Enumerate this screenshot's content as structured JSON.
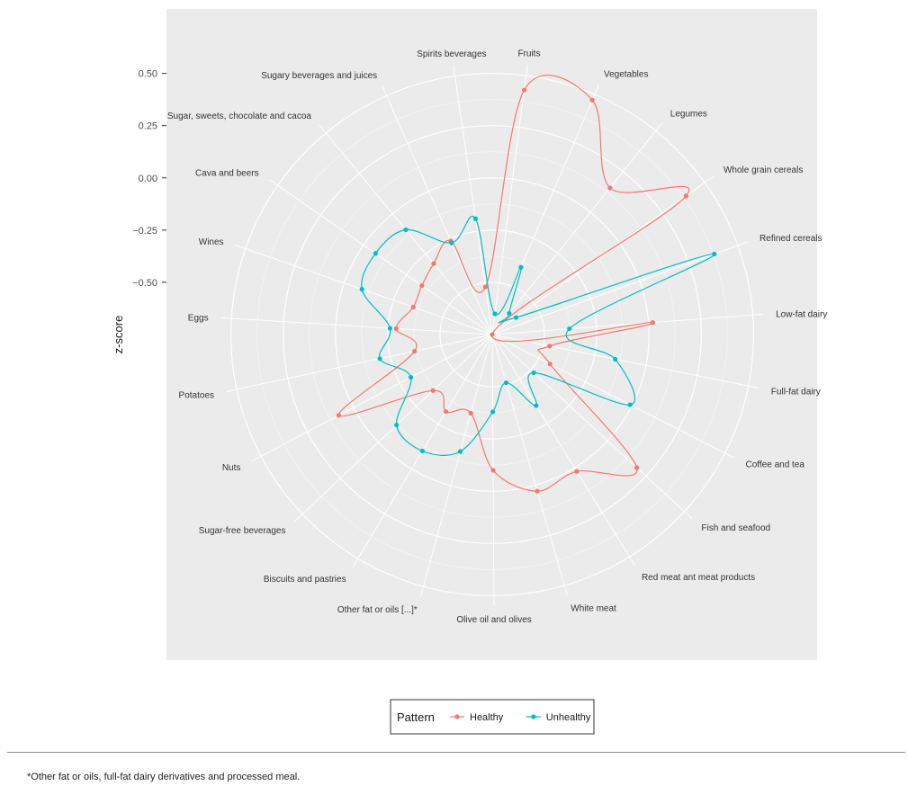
{
  "chart_data": {
    "type": "radar",
    "ylabel": "z-score",
    "yticks": [
      0.5,
      0.25,
      0.0,
      -0.25,
      -0.5
    ],
    "ytick_labels": [
      "0.50",
      "0.25",
      "0.00",
      "−0.25",
      "−0.50"
    ],
    "rlim": [
      -0.75,
      0.55
    ],
    "grid": true,
    "legend_position": "bottom",
    "legend_title": "Pattern",
    "categories": [
      "Fruits",
      "Vegetables",
      "Legumes",
      "Whole grain cereals",
      "Refined cereals",
      "Low-fat dairy",
      "Full-fat dairy",
      "Coffee and tea",
      "Fish and seafood",
      "Red meat ant meat products",
      "White meat",
      "Olive oil and olives",
      "Other fat or oils [...]*",
      "Biscuits and pastries",
      "Sugar-free beverages",
      "Nuts",
      "Potatoes",
      "Eggs",
      "Wines",
      "Cava and beers",
      "Sugar, sweets, chocolate and cacoa",
      "Sugary beverages and juices",
      "Spirits beverages"
    ],
    "series": [
      {
        "name": "Healthy",
        "color": "#F8766D",
        "values": [
          0.43,
          0.47,
          0.15,
          0.39,
          -0.75,
          0.02,
          -0.47,
          -0.44,
          0.19,
          0.02,
          0.03,
          -0.1,
          -0.36,
          -0.32,
          -0.36,
          0.08,
          -0.37,
          -0.29,
          -0.35,
          -0.34,
          -0.31,
          -0.26,
          -0.52
        ]
      },
      {
        "name": "Unhealthy",
        "color": "#00BFC4",
        "values": [
          -0.65,
          -0.4,
          -0.62,
          -0.61,
          0.38,
          -0.38,
          -0.15,
          -0.01,
          -0.48,
          -0.35,
          -0.51,
          -0.38,
          -0.17,
          -0.1,
          -0.12,
          -0.31,
          -0.2,
          -0.26,
          -0.09,
          -0.07,
          -0.1,
          -0.27,
          -0.19
        ]
      }
    ]
  },
  "footnote": "*Other fat or oils, full-fat dairy derivatives and processed meal."
}
